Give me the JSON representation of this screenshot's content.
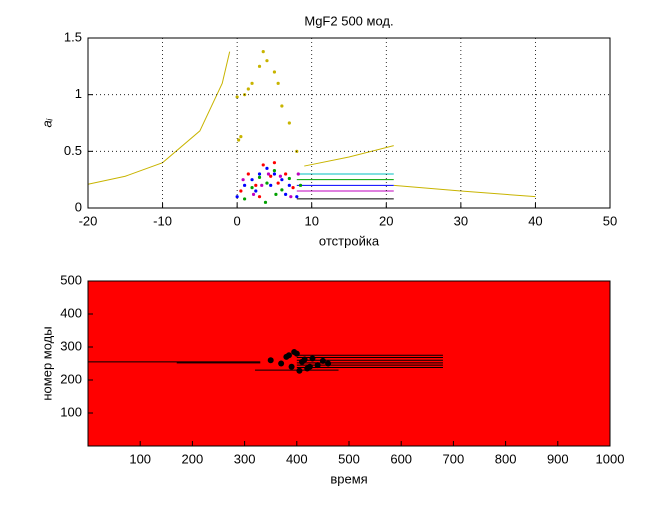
{
  "chart_data": [
    {
      "type": "line",
      "title": "MgF2 500 мод.",
      "xlabel": "отстройка",
      "ylabel": "aᵢ",
      "xlim": [
        -20,
        50
      ],
      "xticks": [
        -20,
        -10,
        0,
        10,
        20,
        30,
        40,
        50
      ],
      "ylim": [
        0,
        1.5
      ],
      "yticks": [
        0,
        0.5,
        1,
        1.5
      ],
      "grid": true,
      "background": "#ffffff",
      "series": [
        {
          "color": "#c8b400",
          "x": [
            -20,
            -15,
            -10,
            -5,
            -2,
            -1
          ],
          "values": [
            0.21,
            0.28,
            0.4,
            0.68,
            1.1,
            1.38
          ]
        },
        {
          "color": "#c8b400",
          "x": [
            9,
            15,
            21
          ],
          "values": [
            0.37,
            0.45,
            0.55
          ]
        },
        {
          "color": "#c8b400",
          "x": [
            21,
            30,
            40
          ],
          "values": [
            0.2,
            0.15,
            0.1
          ]
        },
        {
          "color": "#00bfbf",
          "x": [
            8,
            21
          ],
          "values": [
            0.3,
            0.3
          ]
        },
        {
          "color": "#00a000",
          "x": [
            8,
            21
          ],
          "values": [
            0.25,
            0.25
          ]
        },
        {
          "color": "#0000ff",
          "x": [
            8,
            21
          ],
          "values": [
            0.2,
            0.2
          ]
        },
        {
          "color": "#bf00bf",
          "x": [
            8,
            21
          ],
          "values": [
            0.15,
            0.15
          ]
        },
        {
          "color": "#000000",
          "x": [
            8,
            21
          ],
          "values": [
            0.08,
            0.08
          ]
        },
        {
          "color": "#ff0000",
          "x": [
            -20,
            40
          ],
          "values": [
            0,
            0
          ]
        },
        {
          "type": "scatter",
          "color": "#c8b400",
          "x": [
            0,
            0.5,
            1,
            2,
            3,
            3.5,
            4,
            5,
            5.5,
            6,
            7,
            8,
            0.2,
            1.5
          ],
          "values": [
            0.98,
            0.63,
            1.0,
            1.1,
            1.25,
            1.38,
            1.3,
            1.2,
            1.1,
            0.9,
            0.75,
            0.5,
            0.6,
            1.05
          ]
        },
        {
          "type": "scatter",
          "color": "#0000ff",
          "x": [
            0,
            1,
            2,
            3,
            4,
            5,
            6,
            7,
            8,
            2.5,
            4.5,
            6.5
          ],
          "values": [
            0.1,
            0.2,
            0.25,
            0.3,
            0.35,
            0.3,
            0.25,
            0.2,
            0.1,
            0.15,
            0.2,
            0.12
          ]
        },
        {
          "type": "scatter",
          "color": "#ff0000",
          "x": [
            0.5,
            1.5,
            2.5,
            3.5,
            4.5,
            5.5,
            6.5,
            7.5,
            3,
            5
          ],
          "values": [
            0.15,
            0.3,
            0.2,
            0.38,
            0.28,
            0.22,
            0.3,
            0.18,
            0.1,
            0.4
          ]
        },
        {
          "type": "scatter",
          "color": "#00a000",
          "x": [
            1,
            2,
            3,
            4,
            5,
            6,
            7,
            8.5,
            3.8,
            5.2
          ],
          "values": [
            0.08,
            0.18,
            0.27,
            0.22,
            0.33,
            0.16,
            0.26,
            0.2,
            0.05,
            0.12
          ]
        },
        {
          "type": "scatter",
          "color": "#bf00bf",
          "x": [
            0.8,
            2.2,
            3.3,
            4.2,
            5.8,
            7.2,
            8.2
          ],
          "values": [
            0.25,
            0.12,
            0.2,
            0.3,
            0.28,
            0.1,
            0.3
          ]
        }
      ]
    },
    {
      "type": "line",
      "xlabel": "время",
      "ylabel": "номер моды",
      "xlim": [
        0,
        1000
      ],
      "xticks": [
        100,
        200,
        300,
        400,
        500,
        600,
        700,
        800,
        900,
        1000
      ],
      "ylim": [
        0,
        500
      ],
      "yticks": [
        100,
        200,
        300,
        400,
        500
      ],
      "grid": false,
      "background": "#ff0000",
      "series": [
        {
          "color": "#000000",
          "x": [
            0,
            330
          ],
          "values": [
            255,
            255
          ]
        },
        {
          "color": "#000000",
          "x": [
            170,
            330
          ],
          "values": [
            252,
            252
          ]
        },
        {
          "color": "#000000",
          "x": [
            320,
            480
          ],
          "values": [
            230,
            230
          ]
        },
        {
          "color": "#000000",
          "x": [
            400,
            680
          ],
          "values": [
            275,
            275
          ]
        },
        {
          "color": "#000000",
          "x": [
            400,
            680
          ],
          "values": [
            268,
            268
          ]
        },
        {
          "color": "#000000",
          "x": [
            400,
            680
          ],
          "values": [
            260,
            260
          ]
        },
        {
          "color": "#000000",
          "x": [
            400,
            680
          ],
          "values": [
            252,
            252
          ]
        },
        {
          "color": "#000000",
          "x": [
            400,
            680
          ],
          "values": [
            245,
            245
          ]
        },
        {
          "color": "#000000",
          "x": [
            400,
            680
          ],
          "values": [
            238,
            238
          ]
        },
        {
          "type": "scatter",
          "color": "#000000",
          "x": [
            350,
            370,
            380,
            390,
            400,
            410,
            420,
            430,
            440,
            450,
            460,
            395,
            405,
            385,
            415,
            425
          ],
          "values": [
            260,
            250,
            270,
            240,
            280,
            255,
            235,
            265,
            245,
            258,
            250,
            285,
            228,
            275,
            262,
            240
          ]
        }
      ]
    }
  ]
}
